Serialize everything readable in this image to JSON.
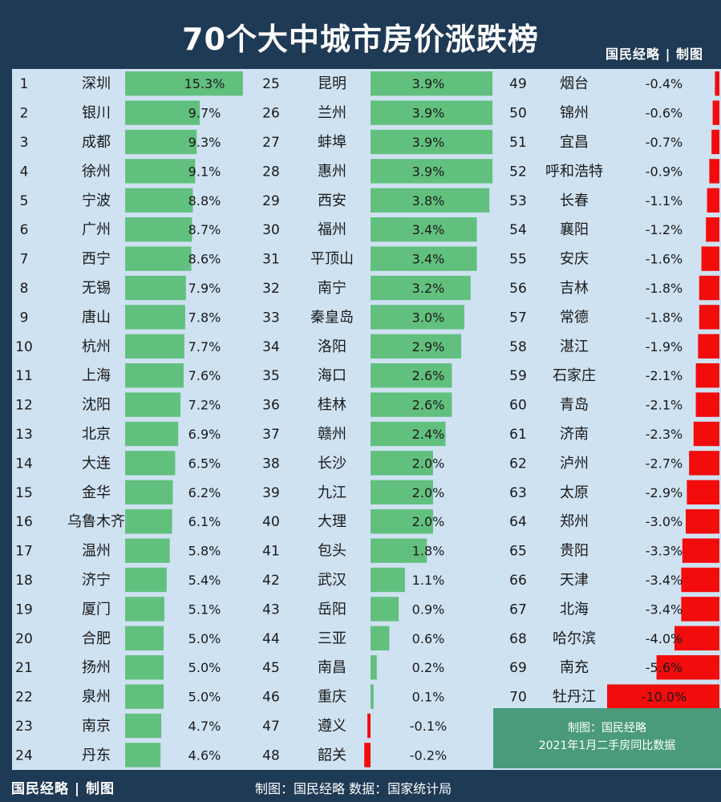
{
  "header": {
    "title": "70个大中城市房价涨跌榜",
    "brand": "国民经略 | 制图"
  },
  "footer": {
    "brand": "国民经略 | 制图",
    "credit": "制图：国民经略 数据：国家统计局"
  },
  "note": {
    "line1": "制图：国民经略",
    "line2": "2021年1月二手房同比数据"
  },
  "colors": {
    "positive": "#62c07e",
    "negative": "#f20c0c",
    "panel": "#cfe2f2",
    "header": "#1f3a55"
  },
  "chart_data": {
    "type": "bar",
    "title": "70个大中城市房价涨跌榜",
    "unit": "%",
    "rows": [
      {
        "rank": "1",
        "city": "深圳",
        "value": 15.3,
        "label": "15.3%"
      },
      {
        "rank": "2",
        "city": "银川",
        "value": 9.7,
        "label": "9.7%"
      },
      {
        "rank": "3",
        "city": "成都",
        "value": 9.3,
        "label": "9.3%"
      },
      {
        "rank": "4",
        "city": "徐州",
        "value": 9.1,
        "label": "9.1%"
      },
      {
        "rank": "5",
        "city": "宁波",
        "value": 8.8,
        "label": "8.8%"
      },
      {
        "rank": "6",
        "city": "广州",
        "value": 8.7,
        "label": "8.7%"
      },
      {
        "rank": "7",
        "city": "西宁",
        "value": 8.6,
        "label": "8.6%"
      },
      {
        "rank": "8",
        "city": "无锡",
        "value": 7.9,
        "label": "7.9%"
      },
      {
        "rank": "9",
        "city": "唐山",
        "value": 7.8,
        "label": "7.8%"
      },
      {
        "rank": "10",
        "city": "杭州",
        "value": 7.7,
        "label": "7.7%"
      },
      {
        "rank": "11",
        "city": "上海",
        "value": 7.6,
        "label": "7.6%"
      },
      {
        "rank": "12",
        "city": "沈阳",
        "value": 7.2,
        "label": "7.2%"
      },
      {
        "rank": "13",
        "city": "北京",
        "value": 6.9,
        "label": "6.9%"
      },
      {
        "rank": "14",
        "city": "大连",
        "value": 6.5,
        "label": "6.5%"
      },
      {
        "rank": "15",
        "city": "金华",
        "value": 6.2,
        "label": "6.2%"
      },
      {
        "rank": "16",
        "city": "乌鲁木齐",
        "value": 6.1,
        "label": "6.1%"
      },
      {
        "rank": "17",
        "city": "温州",
        "value": 5.8,
        "label": "5.8%"
      },
      {
        "rank": "18",
        "city": "济宁",
        "value": 5.4,
        "label": "5.4%"
      },
      {
        "rank": "19",
        "city": "厦门",
        "value": 5.1,
        "label": "5.1%"
      },
      {
        "rank": "20",
        "city": "合肥",
        "value": 5.0,
        "label": "5.0%"
      },
      {
        "rank": "21",
        "city": "扬州",
        "value": 5.0,
        "label": "5.0%"
      },
      {
        "rank": "22",
        "city": "泉州",
        "value": 5.0,
        "label": "5.0%"
      },
      {
        "rank": "23",
        "city": "南京",
        "value": 4.7,
        "label": "4.7%"
      },
      {
        "rank": "24",
        "city": "丹东",
        "value": 4.6,
        "label": "4.6%"
      },
      {
        "rank": "25",
        "city": "昆明",
        "value": 3.9,
        "label": "3.9%"
      },
      {
        "rank": "26",
        "city": "兰州",
        "value": 3.9,
        "label": "3.9%"
      },
      {
        "rank": "27",
        "city": "蚌埠",
        "value": 3.9,
        "label": "3.9%"
      },
      {
        "rank": "28",
        "city": "惠州",
        "value": 3.9,
        "label": "3.9%"
      },
      {
        "rank": "29",
        "city": "西安",
        "value": 3.8,
        "label": "3.8%"
      },
      {
        "rank": "30",
        "city": "福州",
        "value": 3.4,
        "label": "3.4%"
      },
      {
        "rank": "31",
        "city": "平顶山",
        "value": 3.4,
        "label": "3.4%"
      },
      {
        "rank": "32",
        "city": "南宁",
        "value": 3.2,
        "label": "3.2%"
      },
      {
        "rank": "33",
        "city": "秦皇岛",
        "value": 3.0,
        "label": "3.0%"
      },
      {
        "rank": "34",
        "city": "洛阳",
        "value": 2.9,
        "label": "2.9%"
      },
      {
        "rank": "35",
        "city": "海口",
        "value": 2.6,
        "label": "2.6%"
      },
      {
        "rank": "36",
        "city": "桂林",
        "value": 2.6,
        "label": "2.6%"
      },
      {
        "rank": "37",
        "city": "赣州",
        "value": 2.4,
        "label": "2.4%"
      },
      {
        "rank": "38",
        "city": "长沙",
        "value": 2.0,
        "label": "2.0%"
      },
      {
        "rank": "39",
        "city": "九江",
        "value": 2.0,
        "label": "2.0%"
      },
      {
        "rank": "40",
        "city": "大理",
        "value": 2.0,
        "label": "2.0%"
      },
      {
        "rank": "41",
        "city": "包头",
        "value": 1.8,
        "label": "1.8%"
      },
      {
        "rank": "42",
        "city": "武汉",
        "value": 1.1,
        "label": "1.1%"
      },
      {
        "rank": "43",
        "city": "岳阳",
        "value": 0.9,
        "label": "0.9%"
      },
      {
        "rank": "44",
        "city": "三亚",
        "value": 0.6,
        "label": "0.6%"
      },
      {
        "rank": "45",
        "city": "南昌",
        "value": 0.2,
        "label": "0.2%"
      },
      {
        "rank": "46",
        "city": "重庆",
        "value": 0.1,
        "label": "0.1%"
      },
      {
        "rank": "47",
        "city": "遵义",
        "value": -0.1,
        "label": "-0.1%"
      },
      {
        "rank": "48",
        "city": "韶关",
        "value": -0.2,
        "label": "-0.2%"
      },
      {
        "rank": "49",
        "city": "烟台",
        "value": -0.4,
        "label": "-0.4%"
      },
      {
        "rank": "50",
        "city": "锦州",
        "value": -0.6,
        "label": "-0.6%"
      },
      {
        "rank": "51",
        "city": "宜昌",
        "value": -0.7,
        "label": "-0.7%"
      },
      {
        "rank": "52",
        "city": "呼和浩特",
        "value": -0.9,
        "label": "-0.9%"
      },
      {
        "rank": "53",
        "city": "长春",
        "value": -1.1,
        "label": "-1.1%"
      },
      {
        "rank": "54",
        "city": "襄阳",
        "value": -1.2,
        "label": "-1.2%"
      },
      {
        "rank": "55",
        "city": "安庆",
        "value": -1.6,
        "label": "-1.6%"
      },
      {
        "rank": "56",
        "city": "吉林",
        "value": -1.8,
        "label": "-1.8%"
      },
      {
        "rank": "57",
        "city": "常德",
        "value": -1.8,
        "label": "-1.8%"
      },
      {
        "rank": "58",
        "city": "湛江",
        "value": -1.9,
        "label": "-1.9%"
      },
      {
        "rank": "59",
        "city": "石家庄",
        "value": -2.1,
        "label": "-2.1%"
      },
      {
        "rank": "60",
        "city": "青岛",
        "value": -2.1,
        "label": "-2.1%"
      },
      {
        "rank": "61",
        "city": "济南",
        "value": -2.3,
        "label": "-2.3%"
      },
      {
        "rank": "62",
        "city": "泸州",
        "value": -2.7,
        "label": "-2.7%"
      },
      {
        "rank": "63",
        "city": "太原",
        "value": -2.9,
        "label": "-2.9%"
      },
      {
        "rank": "64",
        "city": "郑州",
        "value": -3.0,
        "label": "-3.0%"
      },
      {
        "rank": "65",
        "city": "贵阳",
        "value": -3.3,
        "label": "-3.3%"
      },
      {
        "rank": "66",
        "city": "天津",
        "value": -3.4,
        "label": "-3.4%"
      },
      {
        "rank": "67",
        "city": "北海",
        "value": -3.4,
        "label": "-3.4%"
      },
      {
        "rank": "68",
        "city": "哈尔滨",
        "value": -4.0,
        "label": "-4.0%"
      },
      {
        "rank": "69",
        "city": "南充",
        "value": -5.6,
        "label": "-5.6%"
      },
      {
        "rank": "70",
        "city": "牡丹江",
        "value": -10.0,
        "label": "-10.0%"
      }
    ]
  }
}
